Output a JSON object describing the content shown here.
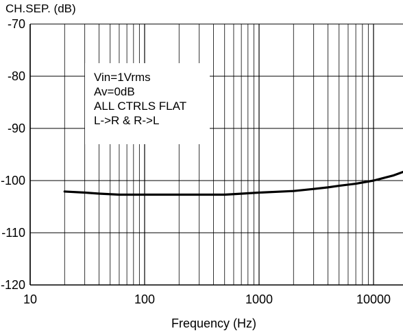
{
  "chart_data": {
    "type": "line",
    "title": "",
    "xlabel": "Frequency (Hz)",
    "ylabel": "CH.SEP. (dB)",
    "x_scale": "log",
    "xlim": [
      10,
      20000
    ],
    "ylim": [
      -120,
      -70
    ],
    "x_ticks": [
      10,
      100,
      1000,
      10000
    ],
    "x_tick_labels": [
      "10",
      "100",
      "1000",
      "10000"
    ],
    "y_ticks": [
      -70,
      -80,
      -90,
      -100,
      -110,
      -120
    ],
    "y_tick_labels": [
      "-70",
      "-80",
      "-90",
      "-100",
      "-110",
      "-120"
    ],
    "grid": true,
    "series": [
      {
        "x": [
          20,
          30,
          40,
          60,
          100,
          200,
          300,
          500,
          600,
          1000,
          2000,
          3000,
          4000,
          5000,
          7000,
          10000,
          15000,
          20000
        ],
        "y": [
          -102.1,
          -102.3,
          -102.5,
          -102.7,
          -102.7,
          -102.7,
          -102.7,
          -102.7,
          -102.6,
          -102.3,
          -102.0,
          -101.6,
          -101.3,
          -101.0,
          -100.6,
          -100.0,
          -99.0,
          -98.0
        ],
        "color": "#000000"
      }
    ],
    "annotations": [
      "Vin=1Vrms",
      "Av=0dB",
      "ALL CTRLS FLAT",
      "L->R & R->L"
    ]
  }
}
